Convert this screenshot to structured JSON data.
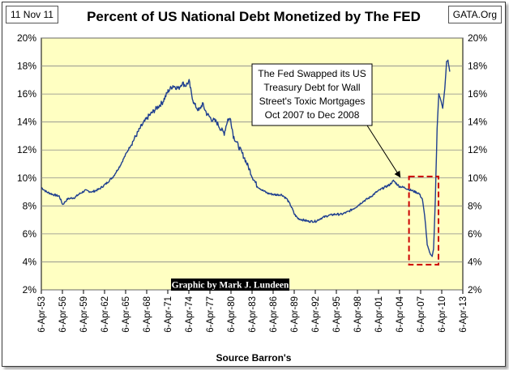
{
  "header": {
    "date": "11 Nov 11",
    "source_site": "GATA.Org"
  },
  "chart_data": {
    "type": "line",
    "title": "Percent of US National Debt Monetized by The FED",
    "xlabel": "Source Barron's",
    "ylabel": "",
    "ylim": [
      2,
      20
    ],
    "y_ticks": [
      "2%",
      "4%",
      "6%",
      "8%",
      "10%",
      "12%",
      "14%",
      "16%",
      "18%",
      "20%"
    ],
    "y_tick_values": [
      2,
      4,
      6,
      8,
      10,
      12,
      14,
      16,
      18,
      20
    ],
    "x_ticks": [
      "6-Apr-53",
      "6-Apr-56",
      "6-Apr-59",
      "6-Apr-62",
      "6-Apr-65",
      "6-Apr-68",
      "6-Apr-71",
      "6-Apr-74",
      "6-Apr-77",
      "6-Apr-80",
      "6-Apr-83",
      "6-Apr-86",
      "6-Apr-89",
      "6-Apr-92",
      "6-Apr-95",
      "6-Apr-98",
      "6-Apr-01",
      "6-Apr-04",
      "6-Apr-07",
      "6-Apr-10",
      "6-Apr-13"
    ],
    "x_tick_years": [
      1953.26,
      1956.26,
      1959.26,
      1962.26,
      1965.26,
      1968.26,
      1971.26,
      1974.26,
      1977.26,
      1980.26,
      1983.26,
      1986.26,
      1989.26,
      1992.26,
      1995.26,
      1998.26,
      2001.26,
      2004.26,
      2007.26,
      2010.26,
      2013.26
    ],
    "xlim": [
      1953.26,
      2013.26
    ],
    "grid": true,
    "series": [
      {
        "name": "Percent of US National Debt Monetized",
        "color": "#1f3f8f",
        "points": [
          [
            1953.3,
            9.3
          ],
          [
            1954.0,
            9.0
          ],
          [
            1955.0,
            8.8
          ],
          [
            1955.8,
            8.7
          ],
          [
            1956.3,
            8.1
          ],
          [
            1957.0,
            8.5
          ],
          [
            1958.0,
            8.6
          ],
          [
            1958.8,
            8.9
          ],
          [
            1959.5,
            9.1
          ],
          [
            1960.5,
            9.0
          ],
          [
            1961.5,
            9.2
          ],
          [
            1962.5,
            9.6
          ],
          [
            1963.5,
            10.1
          ],
          [
            1964.5,
            10.9
          ],
          [
            1965.5,
            11.9
          ],
          [
            1966.5,
            12.8
          ],
          [
            1967.5,
            13.7
          ],
          [
            1968.5,
            14.4
          ],
          [
            1969.5,
            14.9
          ],
          [
            1970.5,
            15.4
          ],
          [
            1971.3,
            16.2
          ],
          [
            1972.0,
            16.6
          ],
          [
            1972.8,
            16.4
          ],
          [
            1973.3,
            16.8
          ],
          [
            1973.8,
            16.6
          ],
          [
            1974.3,
            16.9
          ],
          [
            1974.6,
            16.1
          ],
          [
            1975.0,
            15.3
          ],
          [
            1975.7,
            14.8
          ],
          [
            1976.2,
            15.3
          ],
          [
            1976.8,
            14.6
          ],
          [
            1977.5,
            14.2
          ],
          [
            1978.2,
            14.0
          ],
          [
            1978.8,
            13.5
          ],
          [
            1979.3,
            13.2
          ],
          [
            1979.8,
            14.2
          ],
          [
            1980.2,
            14.2
          ],
          [
            1980.6,
            13.0
          ],
          [
            1981.0,
            12.6
          ],
          [
            1981.6,
            12.0
          ],
          [
            1982.2,
            11.4
          ],
          [
            1982.8,
            10.7
          ],
          [
            1983.3,
            10.1
          ],
          [
            1984.0,
            9.4
          ],
          [
            1984.8,
            9.1
          ],
          [
            1985.5,
            8.9
          ],
          [
            1986.5,
            8.8
          ],
          [
            1987.5,
            8.8
          ],
          [
            1988.2,
            8.5
          ],
          [
            1988.8,
            8.0
          ],
          [
            1989.3,
            7.4
          ],
          [
            1989.8,
            7.1
          ],
          [
            1990.5,
            7.0
          ],
          [
            1991.3,
            6.9
          ],
          [
            1992.3,
            6.9
          ],
          [
            1993.0,
            7.1
          ],
          [
            1994.0,
            7.3
          ],
          [
            1995.0,
            7.4
          ],
          [
            1996.0,
            7.4
          ],
          [
            1997.0,
            7.6
          ],
          [
            1998.0,
            7.9
          ],
          [
            1999.0,
            8.3
          ],
          [
            2000.0,
            8.6
          ],
          [
            2001.0,
            9.0
          ],
          [
            2002.0,
            9.3
          ],
          [
            2002.8,
            9.5
          ],
          [
            2003.4,
            9.8
          ],
          [
            2004.2,
            9.4
          ],
          [
            2005.0,
            9.3
          ],
          [
            2006.0,
            9.1
          ],
          [
            2007.0,
            8.9
          ],
          [
            2007.5,
            8.5
          ],
          [
            2007.9,
            7.0
          ],
          [
            2008.2,
            5.2
          ],
          [
            2008.6,
            4.6
          ],
          [
            2008.9,
            4.4
          ],
          [
            2009.1,
            4.9
          ],
          [
            2009.35,
            8.5
          ],
          [
            2009.6,
            13.5
          ],
          [
            2009.85,
            16.0
          ],
          [
            2010.1,
            15.6
          ],
          [
            2010.4,
            15.0
          ],
          [
            2010.7,
            16.4
          ],
          [
            2010.95,
            18.3
          ],
          [
            2011.15,
            18.4
          ],
          [
            2011.4,
            17.6
          ]
        ]
      }
    ],
    "annotations": [
      {
        "name": "callout",
        "lines": [
          "The Fed Swapped its US",
          "Treasury Debt for Wall",
          "Street's Toxic Mortgages",
          "Oct 2007 to Dec 2008"
        ],
        "arrow_to": [
          2004.8,
          9.6
        ]
      },
      {
        "name": "highlight-box",
        "x_range": [
          2005.6,
          2009.8
        ],
        "y_range": [
          3.8,
          10.1
        ],
        "color": "#cc0000"
      }
    ],
    "credit": "Graphic by Mark J. Lundeen"
  }
}
